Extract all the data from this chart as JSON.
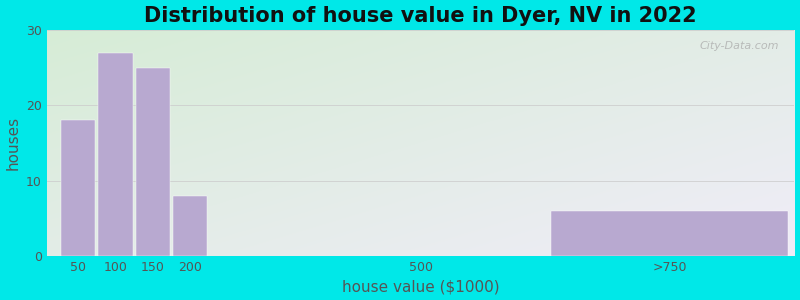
{
  "title": "Distribution of house value in Dyer, NV in 2022",
  "xlabel": "house value ($1000)",
  "ylabel": "houses",
  "bar_labels": [
    "50",
    "100",
    "150",
    "200",
    "500",
    ">750"
  ],
  "bar_values": [
    18,
    27,
    25,
    8,
    0,
    6
  ],
  "bar_color": "#b8a9d0",
  "ylim": [
    0,
    30
  ],
  "yticks": [
    0,
    10,
    20,
    30
  ],
  "background_outer": "#00e8e8",
  "background_top_left": "#d6edd6",
  "background_bottom_right": "#f0ecf8",
  "grid_color": "#cccccc",
  "title_fontsize": 15,
  "axis_label_fontsize": 11,
  "tick_fontsize": 9,
  "watermark_text": "City-Data.com",
  "xlim": [
    -0.5,
    11.5
  ],
  "bar_positions": [
    0.0,
    0.6,
    1.2,
    1.8,
    5.5,
    9.5
  ],
  "bar_widths": [
    0.55,
    0.55,
    0.55,
    0.55,
    0.55,
    3.8
  ],
  "tick_positions": [
    0.0,
    0.6,
    1.2,
    1.8,
    5.5,
    9.5
  ]
}
